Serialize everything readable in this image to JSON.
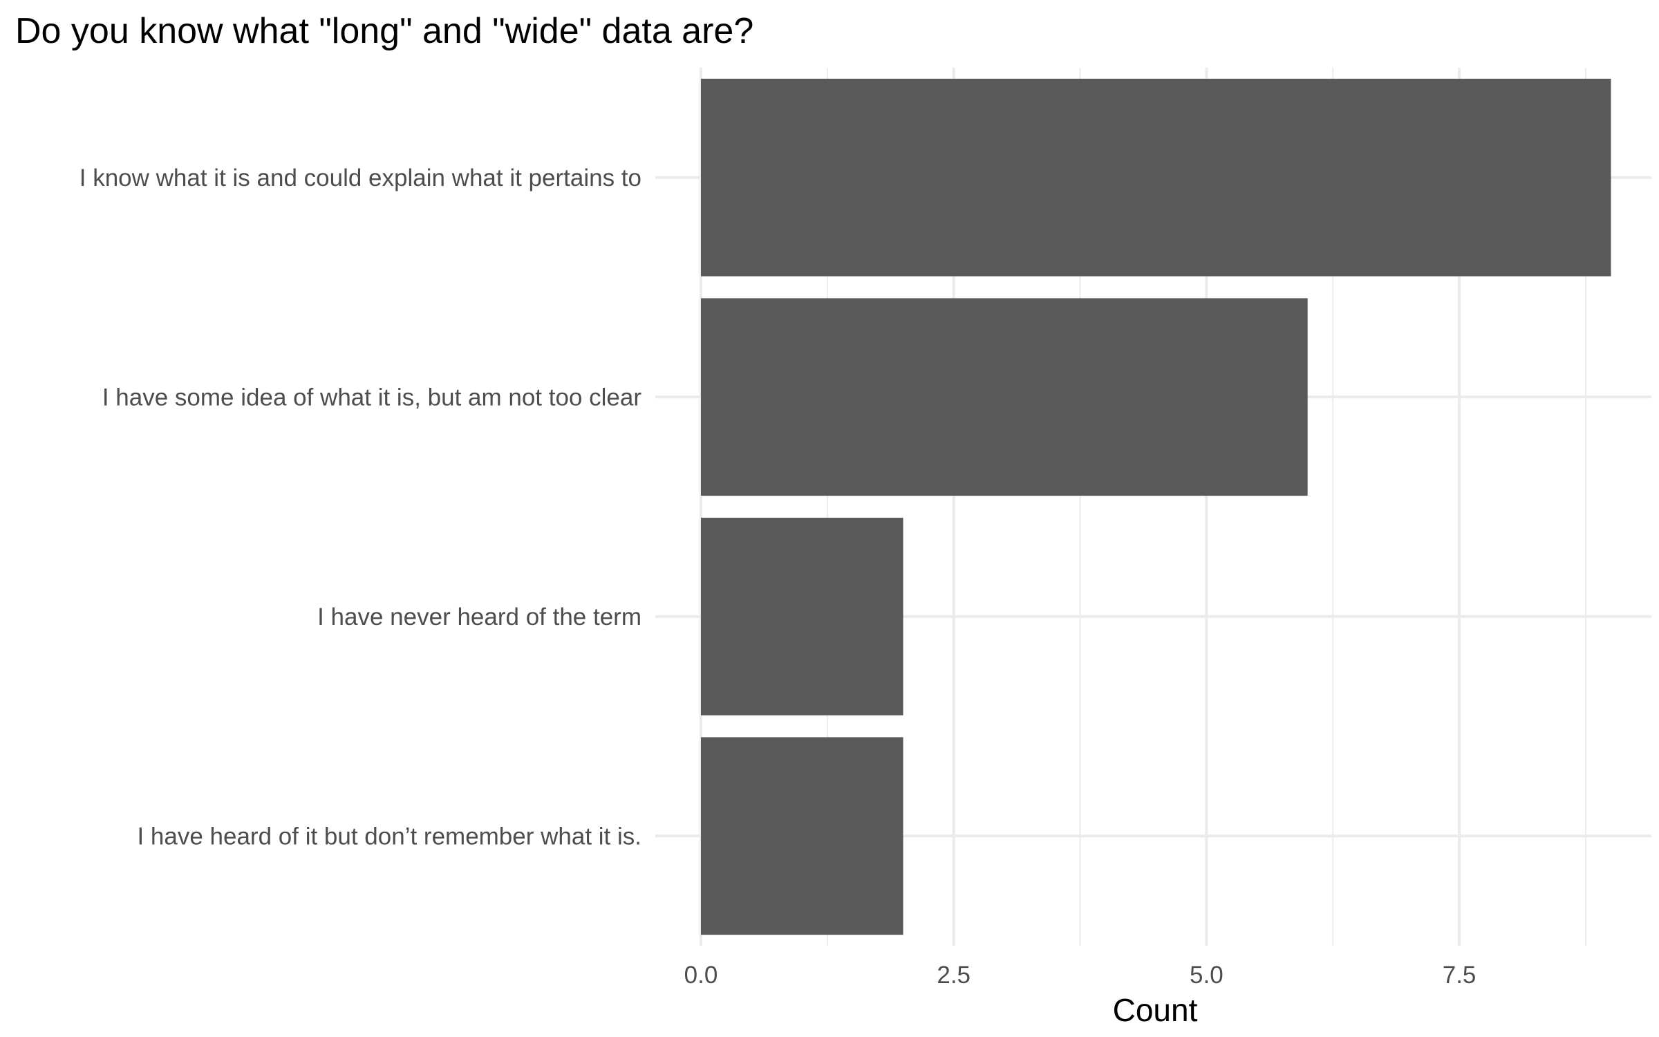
{
  "chart_data": {
    "type": "bar",
    "orientation": "horizontal",
    "title": "Do you know what \"long\" and \"wide\" data are?",
    "xlabel": "Count",
    "ylabel": "",
    "categories": [
      "I know what it is and could explain what it pertains to",
      "I have some idea of what it is, but am not too clear",
      "I have never heard of the term",
      "I have heard of it but don’t remember what it is."
    ],
    "values": [
      9,
      6,
      2,
      2
    ],
    "xlim": [
      0,
      9.4
    ],
    "x_ticks": [
      0,
      2.5,
      5,
      7.5
    ],
    "x_tick_labels": [
      "0.0",
      "2.5",
      "5.0",
      "7.5"
    ],
    "grid": true,
    "bar_color": "#595959",
    "grid_color": "#ebebeb"
  }
}
